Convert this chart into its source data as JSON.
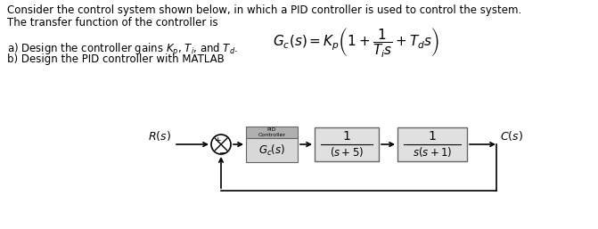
{
  "bg_color": "#ffffff",
  "text_line1": "Consider the control system shown below, in which a PID controller is used to control the system.",
  "text_line2": "The transfer function of the controller is",
  "text_formula": "$G_c(s) = K_p\\left(1 + \\dfrac{1}{T_i s} + T_d s\\right)$",
  "text_a": "a) Design the controller gains $K_p$, $T_i$, and $T_d$.",
  "text_b": "b) Design the PID controller with MATLAB",
  "fig_width": 6.71,
  "fig_height": 2.57,
  "dpi": 100
}
